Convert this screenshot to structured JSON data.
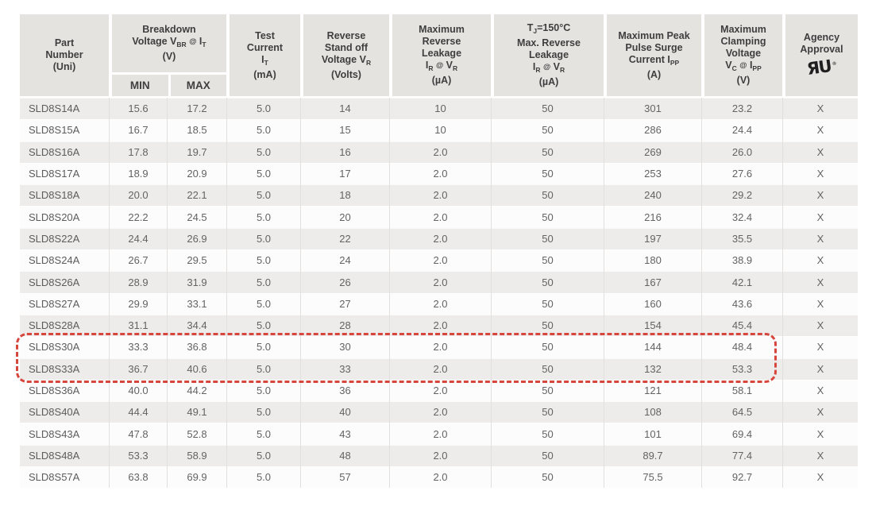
{
  "table": {
    "header": {
      "part": [
        "Part",
        "Number",
        "(Uni)"
      ],
      "breakdown": {
        "lines": [
          "Breakdown",
          "Voltage V_{BR} @ I_{T}",
          "(V)"
        ],
        "min": "MIN",
        "max": "MAX"
      },
      "test_current": [
        "Test",
        "Current",
        "I_{T}",
        "(mA)"
      ],
      "standoff": [
        "Reverse",
        "Stand off",
        "Voltage V_{R}",
        "(Volts)"
      ],
      "max_rev_leakage": [
        "Maximum",
        "Reverse",
        "Leakage",
        "I_{R} @ V_{R}",
        "(µA)"
      ],
      "tj_rev_leakage": [
        "T_{J}=150°C",
        "Max. Reverse",
        "Leakage",
        "I_{R} @ V_{R}",
        "(µA)"
      ],
      "surge": [
        "Maximum Peak",
        "Pulse Surge",
        "Current I_{PP}",
        "(A)"
      ],
      "clamping": [
        "Maximum",
        "Clamping",
        "Voltage",
        "V_{C} @ I_{PP}",
        "(V)"
      ],
      "agency": [
        "Agency",
        "Approval"
      ],
      "ul_mark": "ЯU"
    },
    "rows": [
      [
        "SLD8S14A",
        "15.6",
        "17.2",
        "5.0",
        "14",
        "10",
        "50",
        "301",
        "23.2",
        "X"
      ],
      [
        "SLD8S15A",
        "16.7",
        "18.5",
        "5.0",
        "15",
        "10",
        "50",
        "286",
        "24.4",
        "X"
      ],
      [
        "SLD8S16A",
        "17.8",
        "19.7",
        "5.0",
        "16",
        "2.0",
        "50",
        "269",
        "26.0",
        "X"
      ],
      [
        "SLD8S17A",
        "18.9",
        "20.9",
        "5.0",
        "17",
        "2.0",
        "50",
        "253",
        "27.6",
        "X"
      ],
      [
        "SLD8S18A",
        "20.0",
        "22.1",
        "5.0",
        "18",
        "2.0",
        "50",
        "240",
        "29.2",
        "X"
      ],
      [
        "SLD8S20A",
        "22.2",
        "24.5",
        "5.0",
        "20",
        "2.0",
        "50",
        "216",
        "32.4",
        "X"
      ],
      [
        "SLD8S22A",
        "24.4",
        "26.9",
        "5.0",
        "22",
        "2.0",
        "50",
        "197",
        "35.5",
        "X"
      ],
      [
        "SLD8S24A",
        "26.7",
        "29.5",
        "5.0",
        "24",
        "2.0",
        "50",
        "180",
        "38.9",
        "X"
      ],
      [
        "SLD8S26A",
        "28.9",
        "31.9",
        "5.0",
        "26",
        "2.0",
        "50",
        "167",
        "42.1",
        "X"
      ],
      [
        "SLD8S27A",
        "29.9",
        "33.1",
        "5.0",
        "27",
        "2.0",
        "50",
        "160",
        "43.6",
        "X"
      ],
      [
        "SLD8S28A",
        "31.1",
        "34.4",
        "5.0",
        "28",
        "2.0",
        "50",
        "154",
        "45.4",
        "X"
      ],
      [
        "SLD8S30A",
        "33.3",
        "36.8",
        "5.0",
        "30",
        "2.0",
        "50",
        "144",
        "48.4",
        "X"
      ],
      [
        "SLD8S33A",
        "36.7",
        "40.6",
        "5.0",
        "33",
        "2.0",
        "50",
        "132",
        "53.3",
        "X"
      ],
      [
        "SLD8S36A",
        "40.0",
        "44.2",
        "5.0",
        "36",
        "2.0",
        "50",
        "121",
        "58.1",
        "X"
      ],
      [
        "SLD8S40A",
        "44.4",
        "49.1",
        "5.0",
        "40",
        "2.0",
        "50",
        "108",
        "64.5",
        "X"
      ],
      [
        "SLD8S43A",
        "47.8",
        "52.8",
        "5.0",
        "43",
        "2.0",
        "50",
        "101",
        "69.4",
        "X"
      ],
      [
        "SLD8S48A",
        "53.3",
        "58.9",
        "5.0",
        "48",
        "2.0",
        "50",
        "89.7",
        "77.4",
        "X"
      ],
      [
        "SLD8S57A",
        "63.8",
        "69.9",
        "5.0",
        "57",
        "2.0",
        "50",
        "75.5",
        "92.7",
        "X"
      ]
    ],
    "highlight": {
      "type": "dashed-box",
      "color": "#d7463d",
      "highlighted_parts": [
        "SLD8S30A",
        "SLD8S33A"
      ]
    },
    "colors": {
      "header_bg": "#e4e3e0",
      "row_alt_bg": "#edecea",
      "row_bg": "#fcfcfc",
      "body_text": "#636363",
      "header_text": "#3e3e3e",
      "highlight_red": "#d7463d"
    }
  }
}
